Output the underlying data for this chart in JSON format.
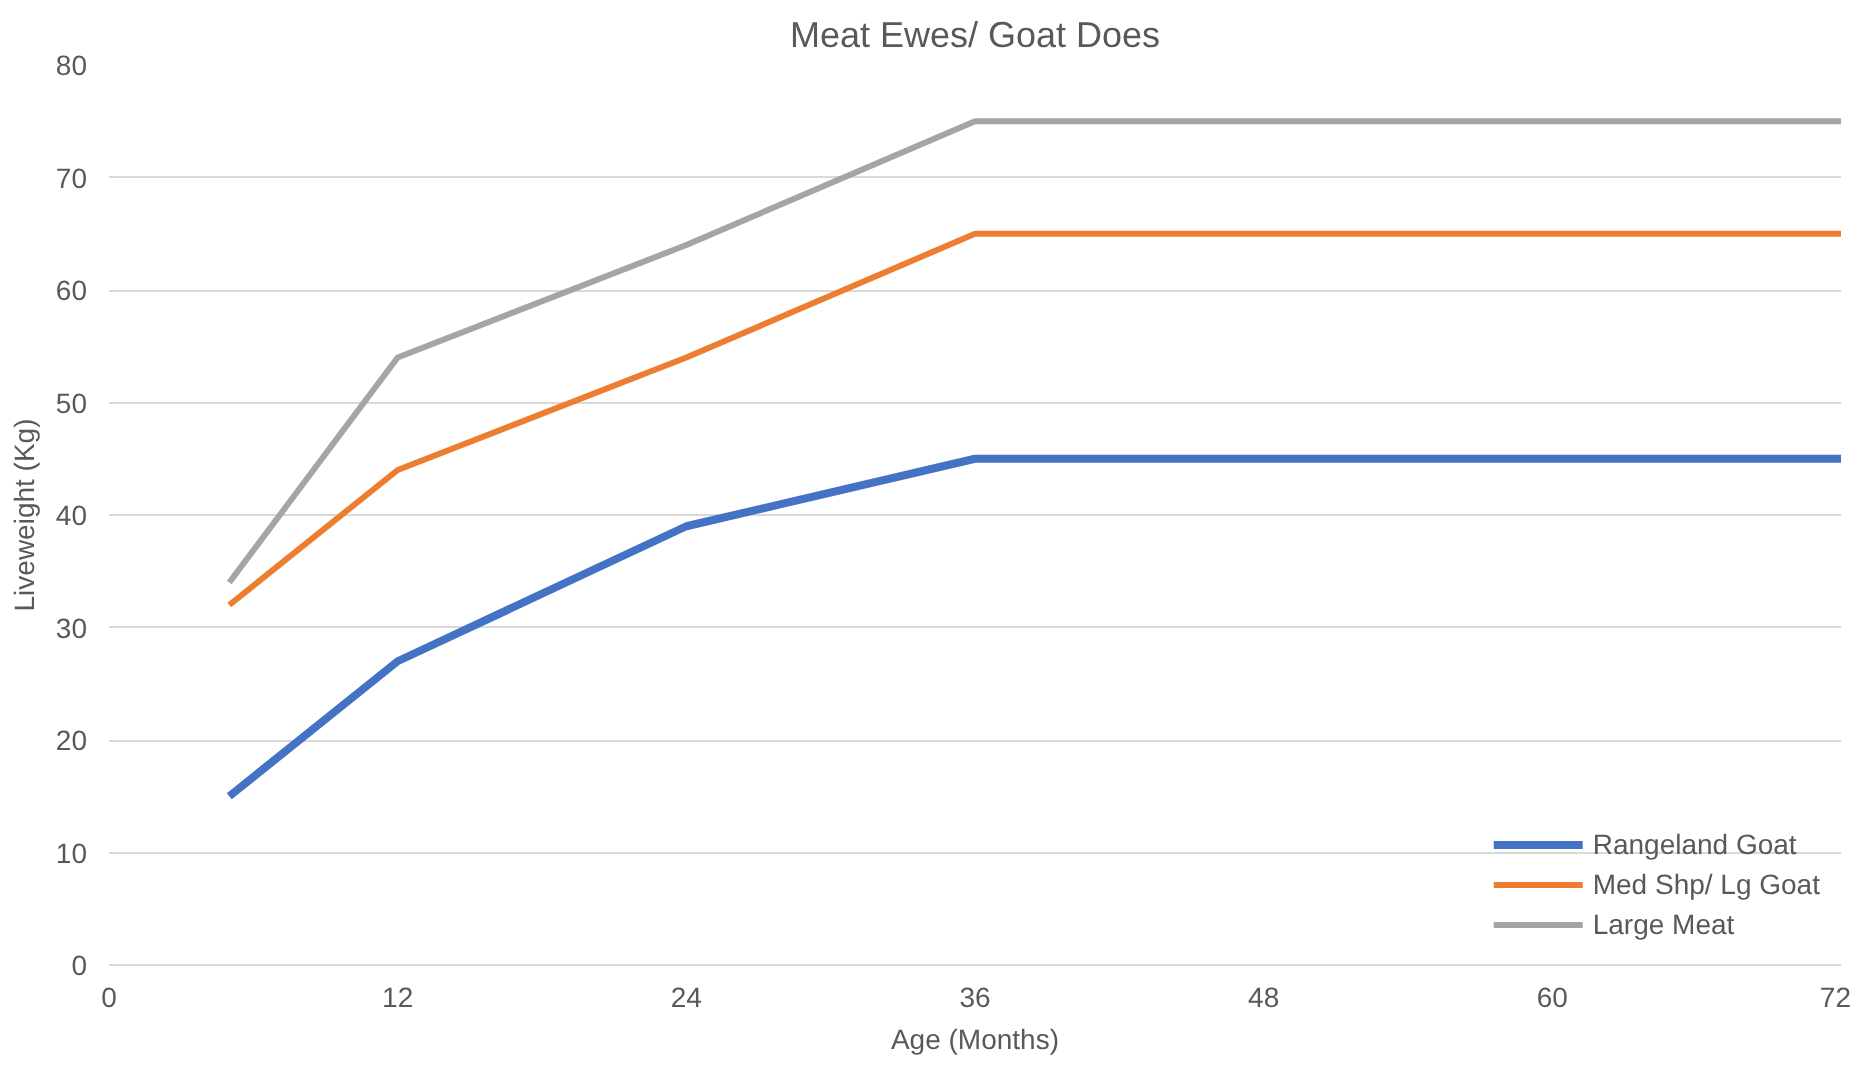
{
  "chart_data": {
    "type": "line",
    "title": "Meat Ewes/ Goat Does",
    "xlabel": "Age (Months)",
    "ylabel": "Liveweight (Kg)",
    "x": [
      5,
      12,
      24,
      36,
      72
    ],
    "series": [
      {
        "name": "Rangeland Goat",
        "color": "#4472c4",
        "values": [
          15,
          27,
          39,
          45,
          45
        ]
      },
      {
        "name": "Med Shp/ Lg Goat",
        "color": "#ed7d31",
        "values": [
          32,
          44,
          54,
          65,
          65
        ]
      },
      {
        "name": "Large Meat",
        "color": "#a5a5a5",
        "values": [
          34,
          54,
          64,
          75,
          75
        ]
      }
    ],
    "xlim": [
      0,
      72
    ],
    "xticks": [
      0,
      12,
      24,
      36,
      48,
      60,
      72
    ],
    "ylim": [
      0,
      80
    ],
    "yticks": [
      0,
      10,
      20,
      30,
      40,
      50,
      60,
      70,
      80
    ],
    "grid": "y",
    "legend": "bottom right",
    "marker": "none",
    "line_style": "solid"
  }
}
